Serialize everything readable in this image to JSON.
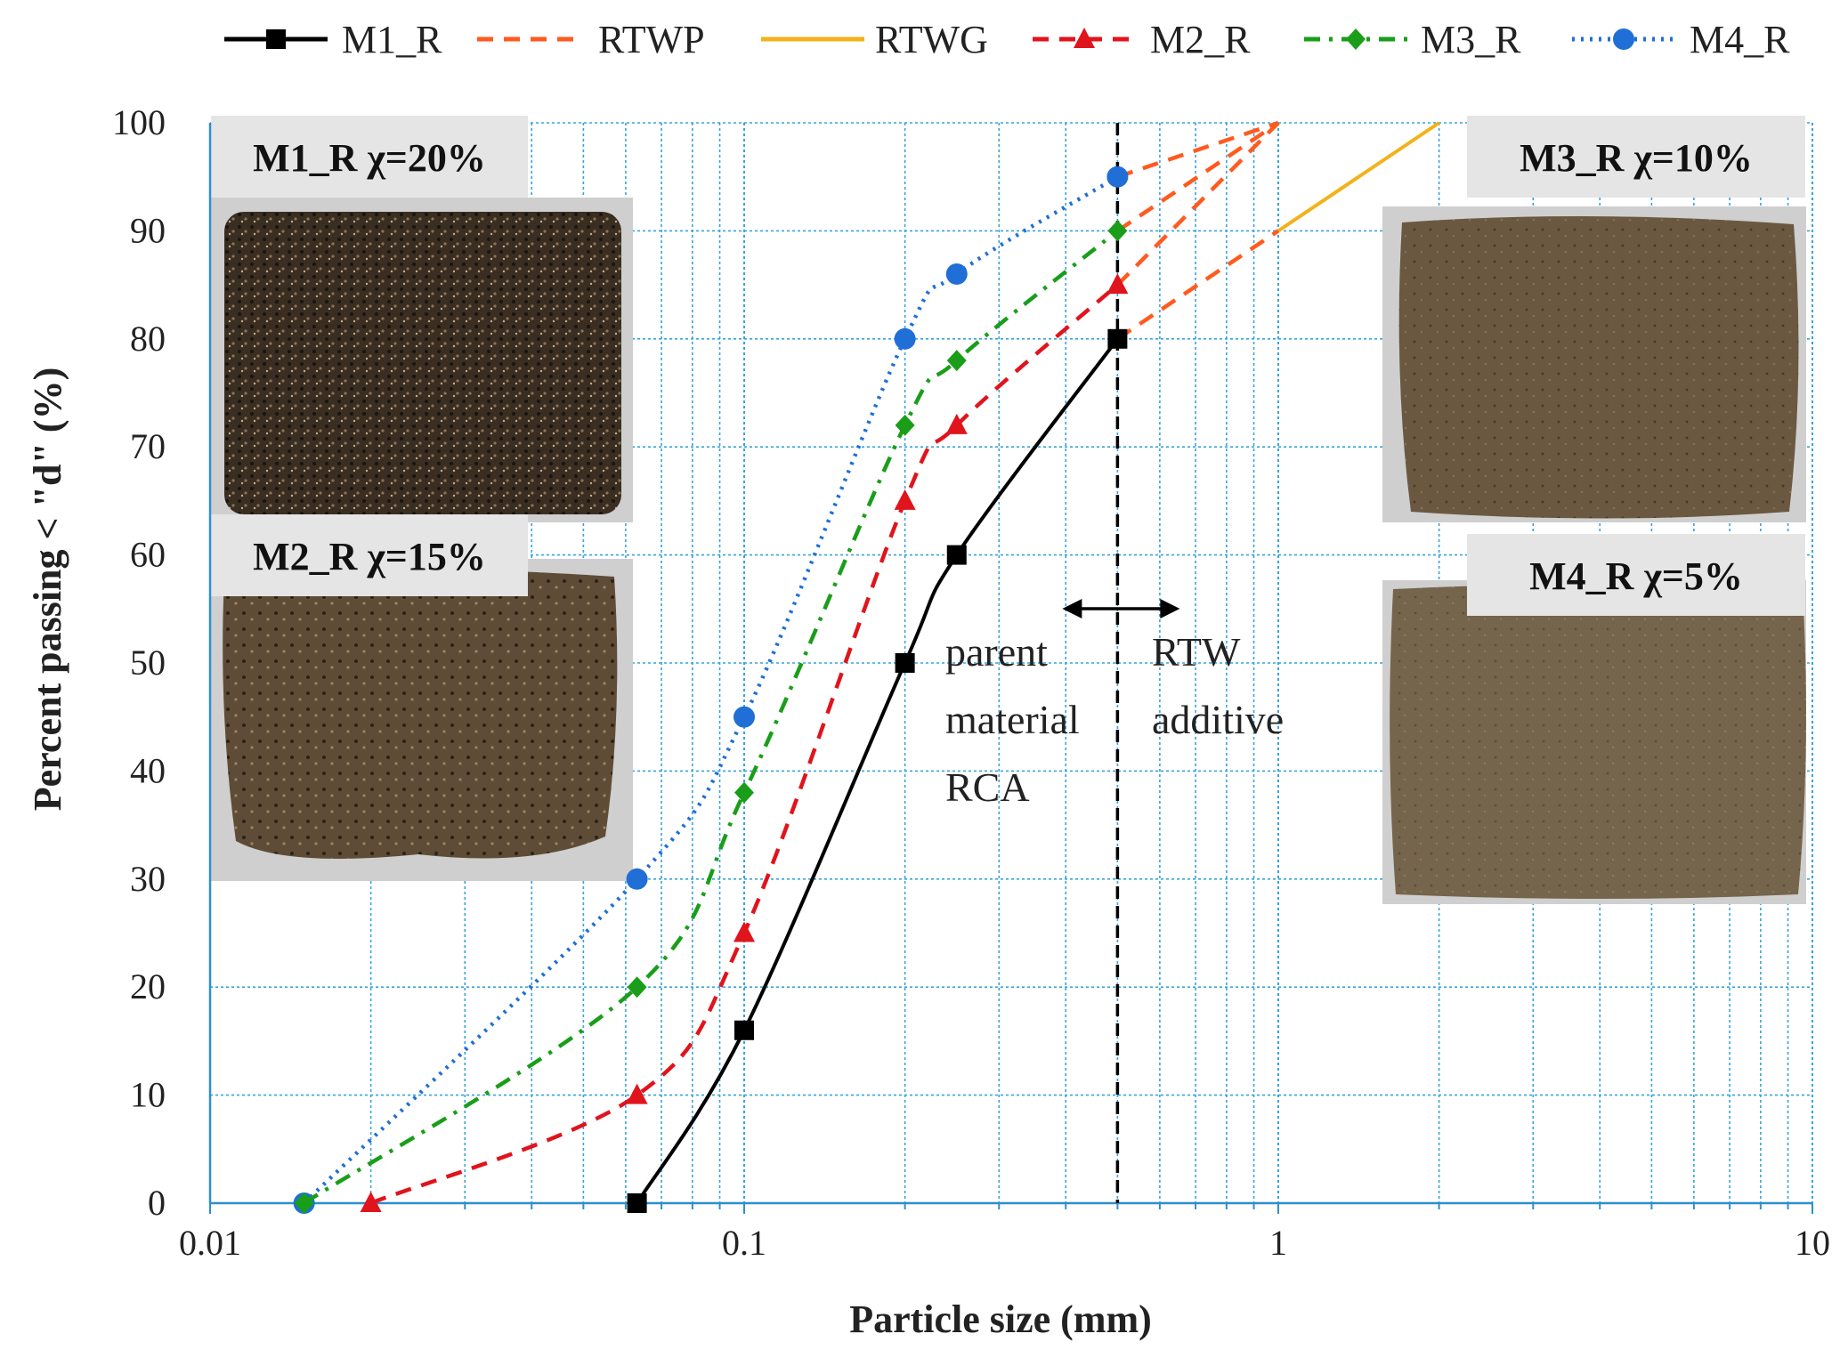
{
  "chart_data": {
    "type": "line",
    "x_scale": "log",
    "xlabel": "Particle size (mm)",
    "ylabel": "Percent passing < \"d\" (%)",
    "xlim": [
      0.01,
      10
    ],
    "ylim": [
      0,
      100
    ],
    "x_ticks": [
      "0.01",
      "0.1",
      "1",
      "10"
    ],
    "y_ticks": [
      "0",
      "10",
      "20",
      "30",
      "40",
      "50",
      "60",
      "70",
      "80",
      "90",
      "100"
    ],
    "grid": true,
    "legend_position": "top",
    "series": [
      {
        "name": "M1_R",
        "color": "#000000",
        "dash": "solid",
        "marker": "square",
        "x": [
          0.063,
          0.1,
          0.2,
          0.25,
          0.5
        ],
        "y": [
          0,
          16,
          50,
          60,
          80
        ]
      },
      {
        "name": "RTWP",
        "color": "#ff5a1f",
        "dash": "dashed",
        "marker": "none",
        "x": [
          0.5,
          1,
          0.5,
          1,
          0.5,
          1,
          0.5,
          1
        ],
        "y": [
          80,
          90,
          85,
          100,
          90,
          100,
          95,
          100
        ]
      },
      {
        "name": "RTWG",
        "color": "#f2b21a",
        "dash": "solid",
        "marker": "none",
        "x": [
          1,
          2
        ],
        "y": [
          90,
          100
        ]
      },
      {
        "name": "M2_R",
        "color": "#e0141c",
        "dash": "dashed",
        "marker": "triangle",
        "x": [
          0.02,
          0.063,
          0.1,
          0.2,
          0.25,
          0.5
        ],
        "y": [
          0,
          10,
          25,
          65,
          72,
          85
        ]
      },
      {
        "name": "M3_R",
        "color": "#1a9e1a",
        "dash": "dashdot",
        "marker": "diamond",
        "x": [
          0.015,
          0.063,
          0.1,
          0.2,
          0.25,
          0.5
        ],
        "y": [
          0,
          20,
          38,
          72,
          78,
          90
        ]
      },
      {
        "name": "M4_R",
        "color": "#1f6fd6",
        "dash": "dotted",
        "marker": "circle",
        "x": [
          0.015,
          0.063,
          0.1,
          0.2,
          0.25,
          0.5
        ],
        "y": [
          0,
          30,
          45,
          80,
          86,
          95
        ]
      }
    ],
    "divider": {
      "x": 0.5,
      "left_label": [
        "parent",
        "material",
        "RCA"
      ],
      "right_label": [
        "RTW",
        "additive"
      ]
    },
    "photos": [
      {
        "label": "M1_R χ=20%",
        "tone": "dark-speckled"
      },
      {
        "label": "M2_R χ=15%",
        "tone": "brown-mixed"
      },
      {
        "label": "M3_R χ=10%",
        "tone": "brown"
      },
      {
        "label": "M4_R χ=5%",
        "tone": "light-brown"
      }
    ]
  }
}
